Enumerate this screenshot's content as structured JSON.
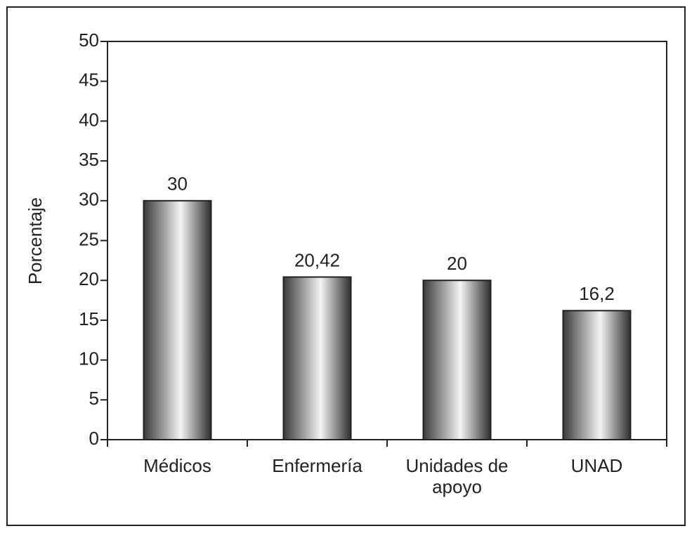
{
  "chart_data": {
    "type": "bar",
    "y_label": "Porcentaje",
    "categories": [
      "Médicos",
      "Enfermería",
      "Unidades de apoyo",
      "UNAD"
    ],
    "values": [
      30,
      20.42,
      20,
      16.2
    ],
    "value_labels": [
      "30",
      "20,42",
      "20",
      "16,2"
    ],
    "ylim": [
      0,
      50
    ],
    "yticks": [
      0,
      5,
      10,
      15,
      20,
      25,
      30,
      35,
      40,
      45,
      50
    ]
  }
}
